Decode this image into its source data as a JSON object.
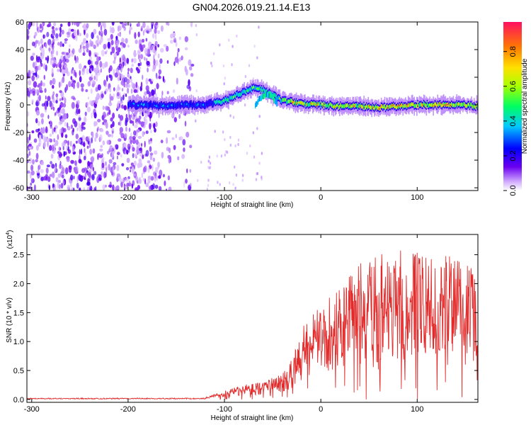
{
  "title": "GN04.2026.019.21.14.E13",
  "chart_data": [
    {
      "type": "heatmap",
      "xlabel": "Height of straight line (km)",
      "ylabel": "Frequency (Hz)",
      "xlim": [
        -305,
        163
      ],
      "ylim": [
        -62,
        60
      ],
      "xticks": [
        -300,
        -200,
        -100,
        0,
        100
      ],
      "yticks": [
        60,
        40,
        20,
        0,
        -20,
        -40,
        -60
      ],
      "grid": false,
      "description_of_values": "ridge: frequency center (Hz) vs height (km)",
      "ridge": {
        "x": [
          -200,
          -180,
          -160,
          -140,
          -120,
          -100,
          -90,
          -80,
          -70,
          -60,
          -50,
          -40,
          -20,
          0,
          20,
          40,
          60,
          80,
          100,
          120,
          140,
          163
        ],
        "y": [
          0,
          0,
          -1,
          0,
          0,
          3,
          6,
          9,
          12,
          11,
          7,
          3,
          1,
          0,
          -1,
          -1,
          -2,
          -1,
          0,
          0,
          0,
          -1
        ]
      },
      "noise_region_x": [
        -305,
        -133
      ],
      "colorbar": {
        "label": "Normalized spectral amplitude",
        "ticks": [
          "0.0",
          "0.2",
          "0.4",
          "0.6",
          "0.8"
        ],
        "range": [
          0,
          0.97
        ]
      }
    },
    {
      "type": "line",
      "xlabel": "Height of straight line (km)",
      "ylabel": "SNR (10 * v/v)",
      "y_multiplier": "(x10",
      "y_multiplier_exp": "4",
      "y_multiplier_close": ")",
      "xlim": [
        -305,
        163
      ],
      "ylim": [
        -0.05,
        2.85
      ],
      "xticks": [
        -300,
        -200,
        -100,
        0,
        100
      ],
      "yticks": [
        "0.0",
        "0.5",
        "1.0",
        "1.5",
        "2.0",
        "2.5"
      ],
      "color": "#e32a2a",
      "envelope": {
        "x": [
          -305,
          -200,
          -120,
          -100,
          -80,
          -60,
          -40,
          -30,
          -20,
          -10,
          0,
          20,
          40,
          60,
          80,
          100,
          120,
          140,
          163
        ],
        "y": [
          0.02,
          0.02,
          0.04,
          0.15,
          0.25,
          0.3,
          0.45,
          0.7,
          1.2,
          1.5,
          1.6,
          1.9,
          2.3,
          2.5,
          2.6,
          2.6,
          2.5,
          2.4,
          2.3
        ]
      }
    }
  ]
}
